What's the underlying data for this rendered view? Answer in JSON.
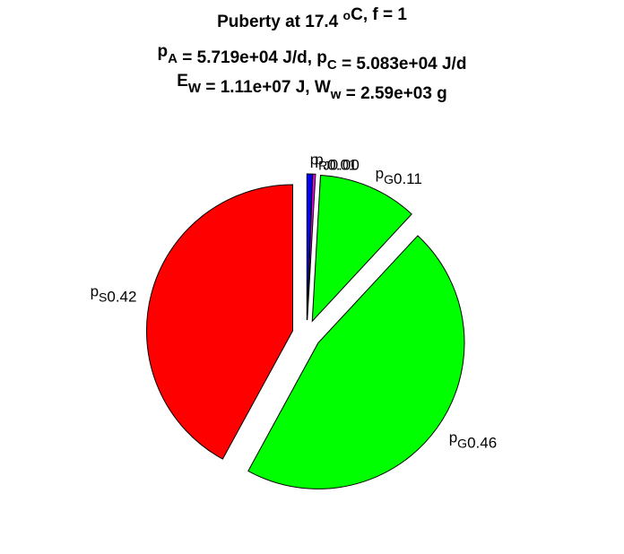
{
  "chart_data": {
    "type": "pie",
    "title_lines": [
      [
        {
          "t": "Puberty at 17.4 "
        },
        {
          "sup": "o"
        },
        {
          "t": "C, f = 1"
        }
      ],
      [
        {
          "t": "p"
        },
        {
          "sub": "A"
        },
        {
          "t": " = 5.719e+04 J/d,  p"
        },
        {
          "sub": "C"
        },
        {
          "t": " = 5.083e+04 J/d"
        }
      ],
      [
        {
          "t": "E"
        },
        {
          "sub": "W"
        },
        {
          "t": " = 1.11e+07 J, W"
        },
        {
          "sub": "w"
        },
        {
          "t": " = 2.59e+03 g"
        }
      ]
    ],
    "labels": [
      {
        "base": "p",
        "sub": "R"
      },
      {
        "base": "p",
        "sub": "J"
      },
      {
        "base": "p",
        "sub": "G"
      },
      {
        "base": "p",
        "sub": "G"
      },
      {
        "base": "p",
        "sub": "S"
      }
    ],
    "values": [
      0.006,
      0.003,
      0.11,
      0.46,
      0.42
    ],
    "value_labels": [
      "0.01",
      "0.00",
      "0.11",
      "0.46",
      "0.42"
    ],
    "colors": [
      "#0000ff",
      "#ff00ff",
      "#00ff00",
      "#00ff00",
      "#ff0000"
    ],
    "explode": true
  }
}
